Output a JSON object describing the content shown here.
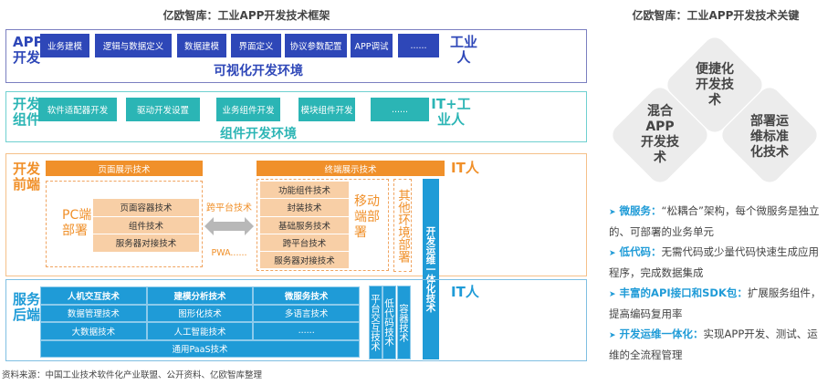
{
  "left_title": "亿欧智库：工业APP开发技术框架",
  "right_title": "亿欧智库：工业APP开发技术关键",
  "app_dev": {
    "label": "APP开发",
    "role": "工业人",
    "env": "可视化开发环境",
    "items": [
      "业务建模",
      "逻辑与数据定义",
      "数据建模",
      "界面定义",
      "协议参数配置",
      "APP调试",
      "......"
    ]
  },
  "components": {
    "label": "开发组件",
    "role": "IT+工业人",
    "env": "组件开发环境",
    "items": [
      "软件适配器开发",
      "驱动开发设置",
      "业务组件开发",
      "模块组件开发",
      "......"
    ]
  },
  "frontend": {
    "label": "开发前端",
    "role": "IT人",
    "page_display": "页面展示技术",
    "terminal_display": "终端展示技术",
    "pc_label": "PC端部署",
    "pc_items": [
      "页面容器技术",
      "组件技术",
      "服务器对接技术"
    ],
    "cross_platform": "跨平台技术",
    "pwa": "PWA......",
    "mobile_label": "移动端部署",
    "mobile_items": [
      "功能组件技术",
      "封装技术",
      "基础服务技术",
      "跨平台技术",
      "服务器对接技术"
    ],
    "other_label": "其他环境部署",
    "devops": "开发运维一体化技术"
  },
  "backend": {
    "label": "服务后端",
    "role": "IT人",
    "grid": [
      [
        "人机交互技术",
        "建模分析技术",
        "微服务技术"
      ],
      [
        "数据管理技术",
        "图形化技术",
        "多语言技术"
      ],
      [
        "大数据技术",
        "人工智能技术",
        "......"
      ]
    ],
    "paas": "通用PaaS技术",
    "vertical": [
      "平台交互技术",
      "低代码技术",
      "容器技术"
    ]
  },
  "source": "资料来源：中国工业技术软件化产业联盟、公开资料、亿欧智库整理",
  "diamonds": {
    "top": "便捷化开发技术",
    "left": "混合APP开发技术",
    "right": "部署运维标准化技术"
  },
  "bullets": [
    {
      "key": "微服务：",
      "text": "“松耦合”架构，每个微服务是独立的、可部署的业务单元"
    },
    {
      "key": "低代码：",
      "text": "无需代码或少量代码快速生成应用程序，完成数据集成"
    },
    {
      "key": "丰富的API接口和SDK包：",
      "text": "扩展服务组件，提高编码复用率"
    },
    {
      "key": "开发运维一体化：",
      "text": "实现APP开发、测试、运维的全流程管理"
    }
  ],
  "colors": {
    "app": "#2e47b8",
    "component": "#2bb5b5",
    "frontend": "#f0902a",
    "backend": "#1f9bd7"
  }
}
